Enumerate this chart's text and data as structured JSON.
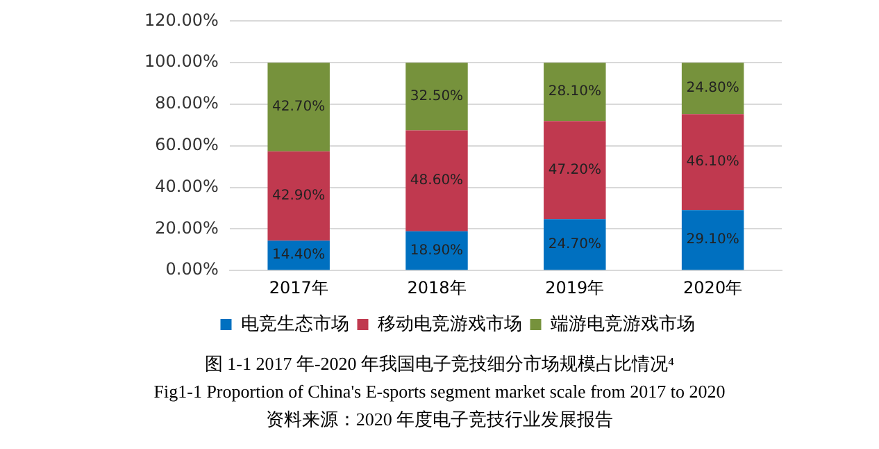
{
  "chart_data": {
    "type": "bar",
    "stacked": true,
    "title": "图 1-1 2017 年-2020 年我国电子竞技细分市场规模占比情况⁴",
    "subtitle": "Fig1-1 Proportion of China's E-sports segment market scale from 2017 to 2020",
    "annotations": [
      "资料来源：2020 年度电子竞技行业发展报告"
    ],
    "categories": [
      "2017年",
      "2018年",
      "2019年",
      "2020年"
    ],
    "series": [
      {
        "name": "电竞生态市场",
        "color": "#0070c0",
        "values": [
          14.4,
          18.9,
          24.7,
          29.1
        ],
        "value_labels": [
          "14.40%",
          "18.90%",
          "24.70%",
          "29.10%"
        ]
      },
      {
        "name": "移动电竞游戏市场",
        "color": "#c0394f",
        "values": [
          42.9,
          48.6,
          47.2,
          46.1
        ],
        "value_labels": [
          "42.90%",
          "48.60%",
          "47.20%",
          "46.10%"
        ]
      },
      {
        "name": "端游电竞游戏市场",
        "color": "#76923c",
        "values": [
          42.7,
          32.5,
          28.1,
          24.8
        ],
        "value_labels": [
          "42.70%",
          "32.50%",
          "28.10%",
          "24.80%"
        ]
      }
    ],
    "ylim": [
      0,
      120
    ],
    "yticks": [
      {
        "value": 0,
        "label": "0.00%"
      },
      {
        "value": 20,
        "label": "20.00%"
      },
      {
        "value": 40,
        "label": "40.00%"
      },
      {
        "value": 60,
        "label": "60.00%"
      },
      {
        "value": 80,
        "label": "80.00%"
      },
      {
        "value": 100,
        "label": "100.00%"
      },
      {
        "value": 120,
        "label": "120.00%"
      }
    ],
    "grid": "y",
    "legend": "bottom"
  }
}
